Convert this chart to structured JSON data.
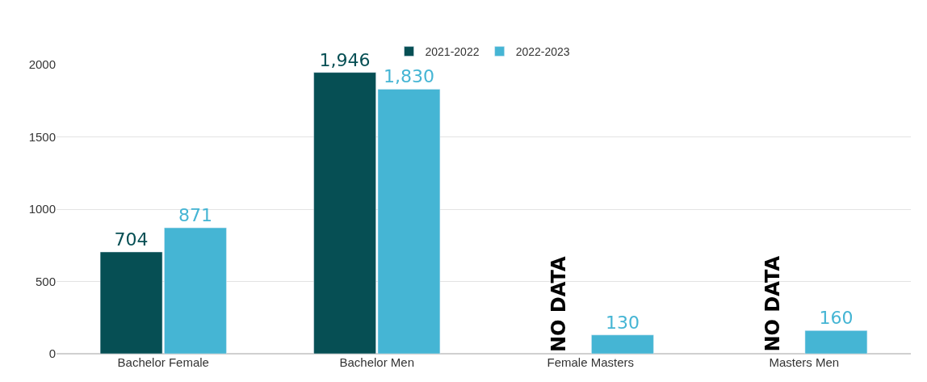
{
  "chart_data": {
    "type": "bar",
    "categories": [
      "Bachelor Female",
      "Bachelor Men",
      "Female Masters",
      "Masters Men"
    ],
    "series": [
      {
        "name": "2021-2022",
        "color": "#064f54",
        "values": [
          704,
          1946,
          null,
          null
        ],
        "value_labels": [
          "704",
          "1,946",
          "NO DATA",
          "NO DATA"
        ]
      },
      {
        "name": "2022-2023",
        "color": "#45b5d4",
        "values": [
          871,
          1830,
          130,
          160
        ],
        "value_labels": [
          "871",
          "1,830",
          "130",
          "160"
        ]
      }
    ],
    "ylim": [
      0,
      2000
    ],
    "yticks": [
      0,
      500,
      1000,
      1500,
      2000
    ],
    "grid": "y",
    "legend": "top"
  }
}
